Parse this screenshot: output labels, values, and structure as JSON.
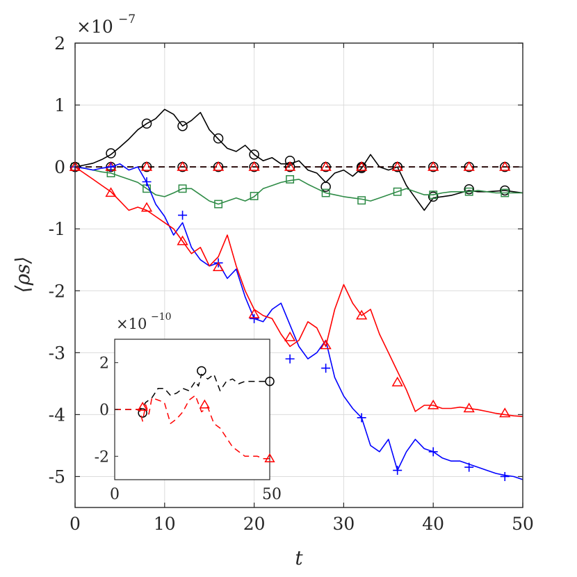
{
  "chart_data": {
    "type": "line",
    "title": "",
    "xlabel": "t",
    "ylabel": "⟨ρs⟩",
    "exponent": {
      "base": "×10",
      "power": "−7"
    },
    "xlim": [
      0,
      50
    ],
    "ylim": [
      -5.5,
      2
    ],
    "xticks": [
      0,
      10,
      20,
      30,
      40,
      50
    ],
    "xtick_labels": [
      "0",
      "10",
      "20",
      "30",
      "40",
      "50"
    ],
    "yticks": [
      2,
      1,
      0,
      -1,
      -2,
      -3,
      -4,
      -5
    ],
    "ytick_labels": [
      "2",
      "1",
      "0",
      "-1",
      "-2",
      "-3",
      "-4",
      "-5"
    ],
    "grid": true,
    "series": [
      {
        "name": "black-circles",
        "color": "#000000",
        "marker": "circle",
        "x": [
          0,
          1,
          2,
          3,
          4,
          5,
          6,
          7,
          8,
          9,
          10,
          11,
          12,
          13,
          14,
          15,
          16,
          17,
          18,
          19,
          20,
          21,
          22,
          23,
          24,
          25,
          26,
          27,
          28,
          29,
          30,
          31,
          32,
          33,
          34,
          35,
          36,
          37,
          38,
          39,
          40,
          41,
          42,
          43,
          44,
          45,
          46,
          47,
          48,
          49,
          50
        ],
        "y": [
          0,
          0.03,
          0.06,
          0.12,
          0.2,
          0.32,
          0.45,
          0.6,
          0.7,
          0.78,
          0.93,
          0.85,
          0.66,
          0.75,
          0.88,
          0.6,
          0.45,
          0.3,
          0.25,
          0.35,
          0.2,
          0.1,
          0.15,
          0.05,
          0.05,
          0.1,
          -0.05,
          -0.1,
          -0.25,
          -0.1,
          -0.05,
          -0.15,
          -0.02,
          0.2,
          0.0,
          -0.05,
          0.0,
          -0.3,
          -0.5,
          -0.7,
          -0.5,
          -0.48,
          -0.46,
          -0.42,
          -0.38,
          -0.4,
          -0.4,
          -0.39,
          -0.38,
          -0.4,
          -0.42
        ],
        "markers_x": [
          0,
          4,
          8,
          12,
          16,
          20,
          24,
          28,
          32,
          36,
          40,
          44,
          48
        ],
        "markers_y": [
          0,
          0.22,
          0.7,
          0.66,
          0.46,
          0.2,
          0.1,
          -0.32,
          -0.02,
          0.0,
          -0.48,
          -0.36,
          -0.38
        ]
      },
      {
        "name": "green-squares",
        "color": "#2e8b46",
        "marker": "square",
        "x": [
          0,
          1,
          2,
          3,
          4,
          5,
          6,
          7,
          8,
          9,
          10,
          11,
          12,
          13,
          14,
          15,
          16,
          17,
          18,
          19,
          20,
          21,
          22,
          23,
          24,
          25,
          26,
          27,
          28,
          29,
          30,
          31,
          32,
          33,
          34,
          35,
          36,
          37,
          38,
          39,
          40,
          41,
          42,
          43,
          44,
          45,
          46,
          47,
          48,
          49,
          50
        ],
        "y": [
          0,
          -0.02,
          -0.05,
          -0.08,
          -0.1,
          -0.15,
          -0.2,
          -0.25,
          -0.35,
          -0.45,
          -0.48,
          -0.42,
          -0.35,
          -0.35,
          -0.45,
          -0.55,
          -0.6,
          -0.55,
          -0.5,
          -0.55,
          -0.48,
          -0.35,
          -0.3,
          -0.25,
          -0.22,
          -0.2,
          -0.28,
          -0.35,
          -0.42,
          -0.45,
          -0.48,
          -0.5,
          -0.52,
          -0.55,
          -0.5,
          -0.45,
          -0.4,
          -0.35,
          -0.4,
          -0.45,
          -0.45,
          -0.42,
          -0.4,
          -0.4,
          -0.4,
          -0.38,
          -0.4,
          -0.42,
          -0.42,
          -0.42,
          -0.42
        ],
        "markers_x": [
          0,
          4,
          8,
          12,
          16,
          20,
          24,
          28,
          32,
          36,
          40,
          44,
          48
        ],
        "markers_y": [
          0,
          -0.1,
          -0.35,
          -0.35,
          -0.6,
          -0.47,
          -0.2,
          -0.42,
          -0.54,
          -0.4,
          -0.45,
          -0.4,
          -0.42
        ]
      },
      {
        "name": "red-dashed-zero",
        "color": "#ff0000",
        "marker": "none",
        "dashed": true,
        "x": [
          0,
          50
        ],
        "y": [
          0,
          0
        ],
        "markers_x": [],
        "markers_y": []
      },
      {
        "name": "black-dashed-zero",
        "color": "#000000",
        "marker": "circle",
        "dashed": true,
        "x": [
          0,
          50
        ],
        "y": [
          0,
          0
        ],
        "markers_x": [
          0,
          4,
          8,
          12,
          16,
          20,
          24,
          28,
          32,
          36,
          40,
          44,
          48
        ],
        "markers_y": [
          0,
          0,
          0,
          0,
          0,
          0,
          0,
          0,
          0,
          0,
          0,
          0,
          0
        ]
      },
      {
        "name": "red-triangles-zero",
        "color": "#ff0000",
        "marker": "triangle",
        "x": [],
        "y": [],
        "markers_x": [
          0,
          4,
          8,
          12,
          16,
          20,
          24,
          28,
          32,
          36,
          40,
          44,
          48
        ],
        "markers_y": [
          0,
          0,
          0,
          0,
          0,
          0,
          0,
          0,
          0,
          0,
          0,
          0,
          0
        ]
      },
      {
        "name": "blue-plus",
        "color": "#0000ff",
        "marker": "plus",
        "x": [
          0,
          1,
          2,
          3,
          4,
          5,
          6,
          7,
          8,
          9,
          10,
          11,
          12,
          13,
          14,
          15,
          16,
          17,
          18,
          19,
          20,
          21,
          22,
          23,
          24,
          25,
          26,
          27,
          28,
          29,
          30,
          31,
          32,
          33,
          34,
          35,
          36,
          37,
          38,
          39,
          40,
          41,
          42,
          43,
          44,
          45,
          46,
          47,
          48,
          49,
          50
        ],
        "y": [
          0,
          -0.02,
          -0.05,
          -0.02,
          0,
          0.05,
          -0.05,
          0.0,
          -0.25,
          -0.6,
          -0.8,
          -1.1,
          -0.9,
          -1.3,
          -1.5,
          -1.6,
          -1.55,
          -1.8,
          -1.65,
          -2.1,
          -2.45,
          -2.5,
          -2.3,
          -2.2,
          -2.55,
          -2.9,
          -3.1,
          -3.0,
          -2.8,
          -3.4,
          -3.7,
          -3.9,
          -4.05,
          -4.5,
          -4.6,
          -4.4,
          -4.9,
          -4.6,
          -4.4,
          -4.55,
          -4.6,
          -4.7,
          -4.75,
          -4.75,
          -4.8,
          -4.85,
          -4.9,
          -4.95,
          -4.98,
          -5.0,
          -5.05
        ],
        "markers_x": [
          0,
          4,
          8,
          12,
          16,
          20,
          24,
          28,
          32,
          36,
          40,
          44,
          48
        ],
        "markers_y": [
          0,
          0,
          -0.24,
          -0.78,
          -1.55,
          -2.45,
          -3.1,
          -3.25,
          -4.05,
          -4.9,
          -4.6,
          -4.85,
          -5.0
        ]
      },
      {
        "name": "red-triangles",
        "color": "#ff0000",
        "marker": "triangle",
        "x": [
          0,
          1,
          2,
          3,
          4,
          5,
          6,
          7,
          8,
          9,
          10,
          11,
          12,
          13,
          14,
          15,
          16,
          17,
          18,
          19,
          20,
          21,
          22,
          23,
          24,
          25,
          26,
          27,
          28,
          29,
          30,
          31,
          32,
          33,
          34,
          35,
          36,
          37,
          38,
          39,
          40,
          41,
          42,
          43,
          44,
          45,
          46,
          47,
          48,
          49,
          50
        ],
        "y": [
          0,
          -0.1,
          -0.2,
          -0.3,
          -0.4,
          -0.55,
          -0.7,
          -0.65,
          -0.7,
          -0.8,
          -0.9,
          -1.0,
          -1.2,
          -1.4,
          -1.3,
          -1.6,
          -1.45,
          -1.1,
          -1.6,
          -2.0,
          -2.3,
          -2.4,
          -2.45,
          -2.7,
          -2.9,
          -2.8,
          -2.5,
          -2.6,
          -2.9,
          -2.3,
          -1.9,
          -2.2,
          -2.4,
          -2.3,
          -2.7,
          -3.0,
          -3.3,
          -3.6,
          -3.95,
          -3.85,
          -3.85,
          -3.9,
          -3.9,
          -3.88,
          -3.9,
          -3.92,
          -3.95,
          -3.98,
          -4.0,
          -4.02,
          -4.03
        ],
        "markers_x": [
          0,
          4,
          8,
          12,
          16,
          20,
          24,
          28,
          32,
          36,
          40,
          44,
          48
        ],
        "markers_y": [
          0,
          -0.42,
          -0.66,
          -1.2,
          -1.62,
          -2.38,
          -2.75,
          -2.88,
          -2.4,
          -3.48,
          -3.85,
          -3.9,
          -3.98
        ]
      }
    ],
    "inset": {
      "exponent": {
        "base": "×10",
        "power": "−10"
      },
      "xlim": [
        0,
        50
      ],
      "ylim": [
        -3,
        3
      ],
      "xticks": [
        0,
        50
      ],
      "xtick_labels": [
        "0",
        "50"
      ],
      "yticks": [
        2,
        0,
        -2
      ],
      "ytick_labels": [
        "2",
        "0",
        "-2"
      ],
      "series": [
        {
          "name": "inset-black",
          "color": "#000000",
          "marker": "circle",
          "dashed": true,
          "x": [
            0,
            2,
            4,
            5,
            6,
            8,
            9,
            10,
            12,
            14,
            16,
            18,
            20,
            22,
            24,
            26,
            27,
            28,
            30,
            32,
            34,
            36,
            38,
            40,
            42,
            44,
            46,
            48,
            50
          ],
          "y": [
            0,
            0,
            0,
            0,
            0,
            0,
            0.1,
            0.3,
            0.5,
            0.9,
            0.9,
            0.6,
            0.7,
            0.9,
            0.8,
            1.2,
            1.0,
            1.5,
            1.3,
            1.5,
            0.8,
            1.2,
            1.3,
            1.1,
            1.2,
            1.2,
            1.2,
            1.2,
            1.2
          ],
          "markers_x": [
            9,
            28,
            50
          ],
          "markers_y": [
            -0.15,
            1.65,
            1.2
          ]
        },
        {
          "name": "inset-red",
          "color": "#ff0000",
          "marker": "triangle",
          "dashed": true,
          "x": [
            0,
            2,
            4,
            5,
            6,
            8,
            9,
            10,
            11,
            12,
            14,
            16,
            18,
            20,
            22,
            24,
            26,
            28,
            30,
            32,
            34,
            36,
            38,
            40,
            42,
            44,
            46,
            48,
            50
          ],
          "y": [
            0,
            0,
            0,
            0,
            0,
            0,
            -0.5,
            0.2,
            -0.2,
            0.5,
            0.4,
            0.3,
            -0.6,
            -0.4,
            -0.1,
            0.4,
            0.6,
            -0.1,
            0.1,
            -0.6,
            -0.8,
            -1.2,
            -1.6,
            -1.8,
            -2.0,
            -2.0,
            -2.0,
            -2.1,
            -2.1
          ],
          "markers_x": [
            9,
            29,
            50
          ],
          "markers_y": [
            0.1,
            0.2,
            -2.1
          ]
        }
      ]
    }
  }
}
